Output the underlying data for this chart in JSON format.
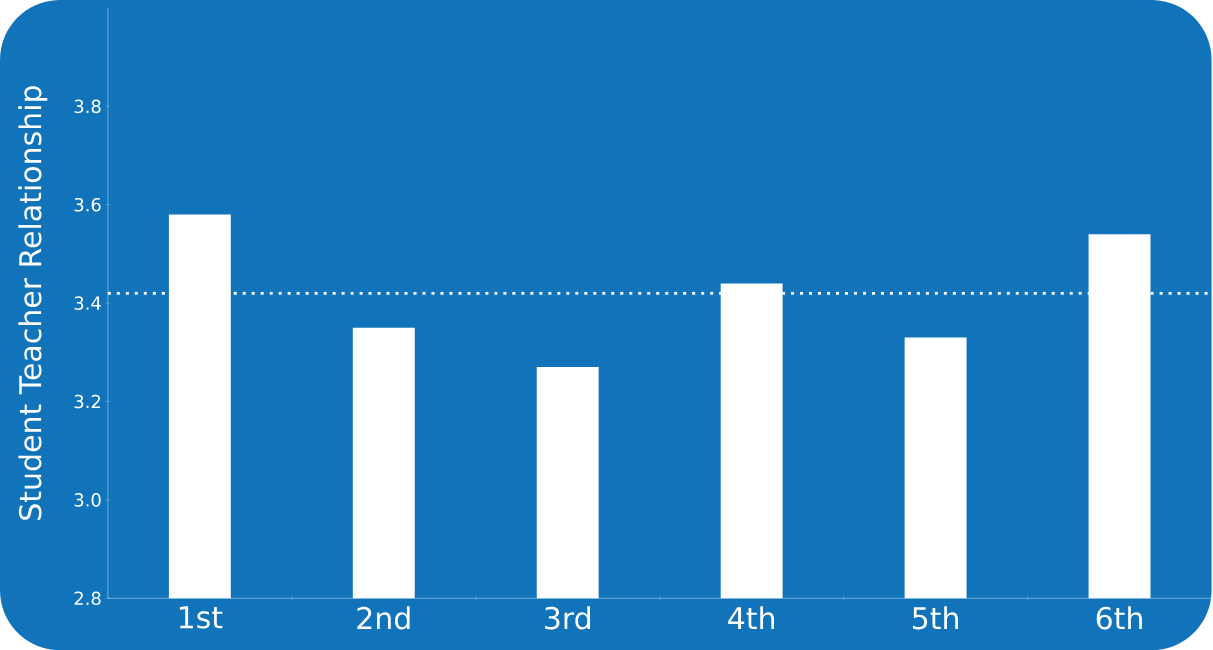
{
  "chart_data": {
    "type": "bar",
    "ylabel": "Student Teacher Relationship",
    "categories": [
      "1st",
      "2nd",
      "3rd",
      "4th",
      "5th",
      "6th"
    ],
    "values": [
      3.58,
      3.35,
      3.27,
      3.44,
      3.33,
      3.54
    ],
    "color": "#ffffff",
    "ylim": [
      2.8,
      4.0
    ],
    "yticks": [
      2.8,
      {
        "value": 3.0,
        "label": "3.0"
      },
      3.2,
      3.4,
      3.6,
      3.8
    ],
    "ref_lines": [
      {
        "axis": "y",
        "value": 3.42,
        "color": "#ffffff",
        "line_style": "dotted"
      }
    ]
  }
}
